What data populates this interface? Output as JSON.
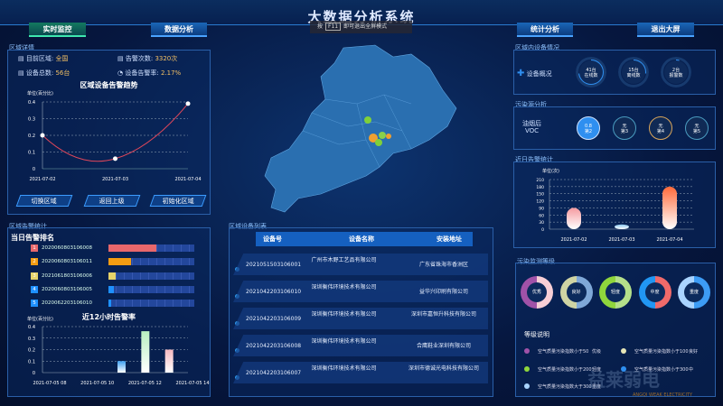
{
  "header": {
    "title": "大数据分析系统",
    "hint_pre": "按",
    "hint_key": "F11",
    "hint_post": "即可退出全屏模式"
  },
  "nav": {
    "realtime": "实时监控",
    "analysis": "数据分析",
    "stats": "统计分析",
    "exit": "退出大屏"
  },
  "region": {
    "title": "区域详情",
    "area_label": "目前区域:",
    "area_value": "全国",
    "alarm_label": "告警次数:",
    "alarm_value": "3320次",
    "devices_label": "设备总数:",
    "devices_value": "56台",
    "rate_label": "设备告警率:",
    "rate_value": "2.17%",
    "chart_title": "区域设备告警趋势",
    "unit": "单位(百分比)",
    "buttons": [
      "切换区域",
      "返回上级",
      "初始化区域"
    ]
  },
  "alarm_stats": {
    "title": "区域告警统计",
    "rank_title": "当日告警排名",
    "ranking": [
      {
        "rank": "1",
        "id": "2020060803106008",
        "level": 0.56,
        "color": "#e8676b"
      },
      {
        "rank": "2",
        "id": "2020060803106011",
        "level": 0.26,
        "color": "#f39c12"
      },
      {
        "rank": "3",
        "id": "2021061803106006",
        "level": 0.08,
        "color": "#e6d36a"
      },
      {
        "rank": "4",
        "id": "2020060803106005",
        "level": 0.06,
        "color": "#1e90ff"
      },
      {
        "rank": "5",
        "id": "2020062203106010",
        "level": 0.03,
        "color": "#1e90ff"
      }
    ],
    "chart_title": "近12小时告警率",
    "unit": "单位(百分比)"
  },
  "device_list": {
    "title": "区域设备列表",
    "columns": [
      "设备号",
      "设备名称",
      "安装地址"
    ],
    "rows": [
      [
        "2021051503106001",
        "广州市木野工艺品有限公司",
        "广东省珠海市香洲区"
      ],
      [
        "2021042203106010",
        "深圳衡伟环境技术有限公司",
        "益华兴印刷有限公司"
      ],
      [
        "2021042203106009",
        "深圳衡伟环境技术有限公司",
        "深圳市嘉恒升科技有限公司"
      ],
      [
        "2021042203106008",
        "深圳衡伟环境技术有限公司",
        "合鹰鞋业深圳有限公司"
      ],
      [
        "2021042203106007",
        "深圳衡伟环境技术有限公司",
        "深圳市德诚光电科技有限公司"
      ]
    ]
  },
  "device_status": {
    "title": "区域内设备情况",
    "label": "设备概况",
    "rings": [
      {
        "value": "41台",
        "label": "在线数",
        "fraction": 0.73
      },
      {
        "value": "15台",
        "label": "离线数",
        "fraction": 0.27
      },
      {
        "value": "2台",
        "label": "报警数",
        "fraction": 0.04
      }
    ]
  },
  "pollutant": {
    "title": "污染源分析",
    "label1": "油烟后",
    "label2": "VOC",
    "items": [
      {
        "v": "0.8",
        "r": "第2",
        "color": "#2f8ff0",
        "ring": "#cfe3ff"
      },
      {
        "v": "无",
        "r": "第3",
        "color": "#102a55",
        "ring": "#4a9cc0"
      },
      {
        "v": "无",
        "r": "第4",
        "color": "#102a55",
        "ring": "#d9a55a"
      },
      {
        "v": "无",
        "r": "第5",
        "color": "#102a55",
        "ring": "#4a9cc0"
      }
    ]
  },
  "recent": {
    "title": "近日告警统计",
    "unit": "单位(次)"
  },
  "levels": {
    "title": "污染监测等级",
    "legend_title": "等级说明",
    "donuts": [
      {
        "name": "优秀",
        "c1": "#a052a8",
        "c2": "#f8cfd6"
      },
      {
        "name": "良好",
        "c1": "#cfd4a4",
        "c2": "#7fa8d8"
      },
      {
        "name": "轻度",
        "c1": "#8fd63c",
        "c2": "#b5e08a"
      },
      {
        "name": "中度",
        "c1": "#2196f3",
        "c2": "#ef6a6a"
      },
      {
        "name": "重度",
        "c1": "#a9d4ff",
        "c2": "#3d9cf5"
      }
    ],
    "legend": [
      {
        "text": "空气质量污染指数小于50",
        "level": "优级",
        "color": "#a052a8"
      },
      {
        "text": "空气质量污染指数小于100",
        "level": "良好",
        "color": "#e6e6b8"
      },
      {
        "text": "空气质量污染指数小于200",
        "level": "轻度",
        "color": "#8fd63c"
      },
      {
        "text": "空气质量污染指数小于300",
        "level": "中",
        "color": "#2f8ff0"
      },
      {
        "text": "空气质量污染指数大于300",
        "level": "重度",
        "color": "#a9d4ff"
      }
    ]
  },
  "watermark": {
    "text": "益莱弱电",
    "sub": "ANGQI WEAK ELECTRICITY"
  },
  "chart_data": [
    {
      "type": "line",
      "title": "区域设备告警趋势",
      "ylabel": "单位(百分比)",
      "categories": [
        "2021-07-02",
        "2021-07-03",
        "2021-07-04"
      ],
      "values": [
        0.2,
        0.06,
        0.39
      ],
      "yticks": [
        0,
        0.1,
        0.2,
        0.3,
        0.4
      ],
      "ylim": [
        0,
        0.4
      ],
      "color": "#e0475a"
    },
    {
      "type": "bar",
      "title": "近12小时告警率",
      "ylabel": "单位(百分比)",
      "xticks": [
        "2021-07-05 08",
        "2021-07-05 10",
        "2021-07-05 12",
        "2021-07-05 14"
      ],
      "bars": [
        {
          "x": 11,
          "value": 0.1,
          "color": "#3ea0f0"
        },
        {
          "x": 12,
          "value": 0.36,
          "color": "#b8f0c0"
        },
        {
          "x": 13,
          "value": 0.2,
          "color": "#f5b8c0"
        }
      ],
      "yticks": [
        0,
        0.1,
        0.2,
        0.3,
        0.4
      ],
      "ylim": [
        0,
        0.4
      ]
    },
    {
      "type": "bar",
      "title": "近日告警统计",
      "ylabel": "单位(次)",
      "categories": [
        "2021-07-02",
        "2021-07-03",
        "2021-07-04"
      ],
      "values": [
        90,
        20,
        180
      ],
      "colors": [
        "#f59aa0",
        "#8ac8f0",
        "#ff6a3a"
      ],
      "yticks": [
        0,
        30,
        60,
        90,
        120,
        150,
        180,
        210
      ],
      "ylim": [
        0,
        210
      ]
    }
  ]
}
